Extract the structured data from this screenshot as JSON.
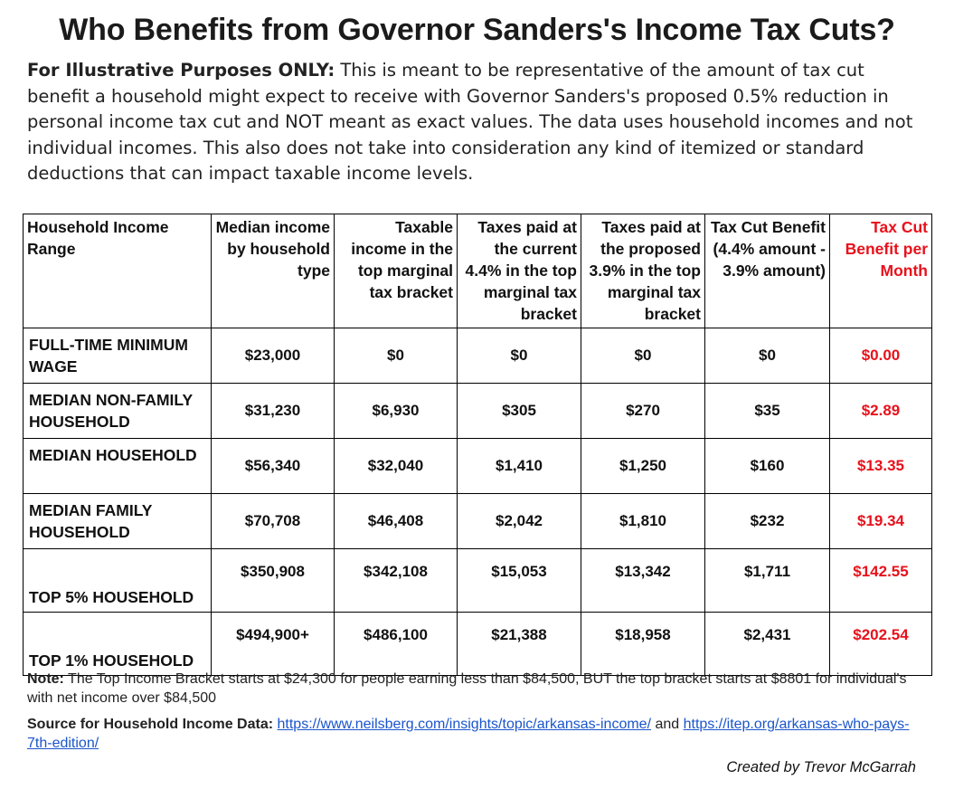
{
  "title": "Who Benefits from Governor Sanders's Income Tax Cuts?",
  "intro": {
    "lead": "For Illustrative Purposes ONLY:",
    "text": " This is meant to be representative of the amount of tax cut benefit a household might expect to receive with Governor Sanders's proposed 0.5% reduction in personal income tax cut and NOT meant as exact values. The data uses household incomes and not individual incomes. This also does not take into consideration any kind of itemized or standard deductions that can impact taxable income levels."
  },
  "table": {
    "headers": [
      "Household Income Range",
      "Median income by household type",
      "Taxable income in the top marginal tax bracket",
      "Taxes paid at the current 4.4% in the top marginal tax bracket",
      "Taxes paid at the proposed 3.9% in the top marginal tax bracket",
      "Tax Cut Benefit (4.4% amount - 3.9% amount)",
      "Tax Cut Benefit per Month"
    ],
    "rows": [
      {
        "label": "FULL-TIME MINIMUM WAGE",
        "median": "$23,000",
        "taxable": "$0",
        "current": "$0",
        "proposed": "$0",
        "benefit": "$0",
        "monthly": "$0.00"
      },
      {
        "label": "MEDIAN NON-FAMILY HOUSEHOLD",
        "median": "$31,230",
        "taxable": "$6,930",
        "current": "$305",
        "proposed": "$270",
        "benefit": "$35",
        "monthly": "$2.89"
      },
      {
        "label": "MEDIAN HOUSEHOLD",
        "median": "$56,340",
        "taxable": "$32,040",
        "current": "$1,410",
        "proposed": "$1,250",
        "benefit": "$160",
        "monthly": "$13.35"
      },
      {
        "label": "MEDIAN FAMILY HOUSEHOLD",
        "median": "$70,708",
        "taxable": "$46,408",
        "current": "$2,042",
        "proposed": "$1,810",
        "benefit": "$232",
        "monthly": "$19.34"
      },
      {
        "label": "TOP 5% HOUSEHOLD",
        "median": "$350,908",
        "taxable": "$342,108",
        "current": "$15,053",
        "proposed": "$13,342",
        "benefit": "$1,711",
        "monthly": "$142.55"
      },
      {
        "label": "TOP 1% HOUSEHOLD",
        "median": "$494,900+",
        "taxable": "$486,100",
        "current": "$21,388",
        "proposed": "$18,958",
        "benefit": "$2,431",
        "monthly": "$202.54"
      }
    ]
  },
  "note": {
    "label": "Note:",
    "text": " The Top Income Bracket starts at $24,300 for people earning less than $84,500, BUT the top bracket starts at $8801 for individual's with net income over $84,500"
  },
  "source": {
    "label": "Source for Household Income Data:",
    "link1": "https://www.neilsberg.com/insights/topic/arkansas-income/",
    "connector": " and ",
    "link2": "https://itep.org/arkansas-who-pays-7th-edition/"
  },
  "credit": "Created by Trevor McGarrah",
  "colors": {
    "highlight": "#e8111b",
    "link": "#1a55cc"
  }
}
